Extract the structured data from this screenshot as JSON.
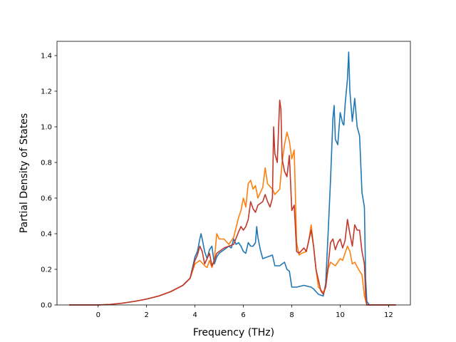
{
  "chart_data": {
    "type": "line",
    "title": "",
    "xlabel": "Frequency (THz)",
    "ylabel": "Partial Density of States",
    "xlim": [
      -1.7,
      12.9
    ],
    "ylim": [
      0.0,
      1.48
    ],
    "xticks": [
      0,
      2,
      4,
      6,
      8,
      10,
      12
    ],
    "xtick_labels": [
      "0",
      "2",
      "4",
      "6",
      "8",
      "10",
      "12"
    ],
    "yticks": [
      0.0,
      0.2,
      0.4,
      0.6,
      0.8,
      1.0,
      1.2,
      1.4
    ],
    "ytick_labels": [
      "0.0",
      "0.2",
      "0.4",
      "0.6",
      "0.8",
      "1.0",
      "1.2",
      "1.4"
    ],
    "grid": false,
    "legend": "none",
    "series": [
      {
        "color": "#1f77b4",
        "points": [
          [
            -1.2,
            0.0
          ],
          [
            0,
            0.0
          ],
          [
            0.5,
            0.003
          ],
          [
            1,
            0.01
          ],
          [
            1.5,
            0.02
          ],
          [
            2,
            0.033
          ],
          [
            2.5,
            0.05
          ],
          [
            3,
            0.075
          ],
          [
            3.5,
            0.11
          ],
          [
            3.8,
            0.15
          ],
          [
            4.0,
            0.27
          ],
          [
            4.1,
            0.3
          ],
          [
            4.2,
            0.37
          ],
          [
            4.25,
            0.4
          ],
          [
            4.3,
            0.37
          ],
          [
            4.4,
            0.3
          ],
          [
            4.5,
            0.26
          ],
          [
            4.6,
            0.31
          ],
          [
            4.7,
            0.33
          ],
          [
            4.8,
            0.23
          ],
          [
            4.9,
            0.27
          ],
          [
            5.0,
            0.29
          ],
          [
            5.2,
            0.31
          ],
          [
            5.4,
            0.33
          ],
          [
            5.5,
            0.32
          ],
          [
            5.6,
            0.37
          ],
          [
            5.7,
            0.34
          ],
          [
            5.8,
            0.35
          ],
          [
            5.9,
            0.33
          ],
          [
            6.0,
            0.3
          ],
          [
            6.1,
            0.29
          ],
          [
            6.2,
            0.35
          ],
          [
            6.3,
            0.33
          ],
          [
            6.4,
            0.33
          ],
          [
            6.5,
            0.35
          ],
          [
            6.55,
            0.44
          ],
          [
            6.6,
            0.38
          ],
          [
            6.7,
            0.31
          ],
          [
            6.8,
            0.26
          ],
          [
            7.0,
            0.27
          ],
          [
            7.2,
            0.28
          ],
          [
            7.3,
            0.22
          ],
          [
            7.5,
            0.22
          ],
          [
            7.7,
            0.24
          ],
          [
            7.8,
            0.2
          ],
          [
            7.9,
            0.19
          ],
          [
            8.0,
            0.1
          ],
          [
            8.2,
            0.1
          ],
          [
            8.5,
            0.11
          ],
          [
            8.8,
            0.1
          ],
          [
            8.9,
            0.09
          ],
          [
            9.1,
            0.06
          ],
          [
            9.3,
            0.05
          ],
          [
            9.4,
            0.12
          ],
          [
            9.5,
            0.4
          ],
          [
            9.6,
            0.7
          ],
          [
            9.7,
            1.05
          ],
          [
            9.75,
            1.12
          ],
          [
            9.8,
            0.93
          ],
          [
            9.9,
            0.9
          ],
          [
            10.0,
            1.08
          ],
          [
            10.1,
            1.02
          ],
          [
            10.15,
            1.01
          ],
          [
            10.2,
            1.12
          ],
          [
            10.3,
            1.27
          ],
          [
            10.35,
            1.42
          ],
          [
            10.4,
            1.2
          ],
          [
            10.5,
            1.03
          ],
          [
            10.6,
            1.16
          ],
          [
            10.7,
            1.0
          ],
          [
            10.8,
            0.95
          ],
          [
            10.9,
            0.63
          ],
          [
            11.0,
            0.55
          ],
          [
            11.05,
            0.15
          ],
          [
            11.1,
            0.02
          ],
          [
            11.2,
            0.0
          ],
          [
            12.3,
            0.0
          ]
        ]
      },
      {
        "color": "#ff7f0e",
        "points": [
          [
            -1.2,
            0.0
          ],
          [
            0,
            0.0
          ],
          [
            0.5,
            0.003
          ],
          [
            1,
            0.01
          ],
          [
            1.5,
            0.02
          ],
          [
            2,
            0.033
          ],
          [
            2.5,
            0.05
          ],
          [
            3,
            0.075
          ],
          [
            3.5,
            0.11
          ],
          [
            3.8,
            0.15
          ],
          [
            4.0,
            0.23
          ],
          [
            4.2,
            0.25
          ],
          [
            4.4,
            0.22
          ],
          [
            4.5,
            0.21
          ],
          [
            4.6,
            0.25
          ],
          [
            4.7,
            0.21
          ],
          [
            4.8,
            0.25
          ],
          [
            4.9,
            0.4
          ],
          [
            5.0,
            0.37
          ],
          [
            5.2,
            0.37
          ],
          [
            5.4,
            0.34
          ],
          [
            5.6,
            0.38
          ],
          [
            5.8,
            0.49
          ],
          [
            5.9,
            0.53
          ],
          [
            6.0,
            0.6
          ],
          [
            6.1,
            0.55
          ],
          [
            6.2,
            0.68
          ],
          [
            6.3,
            0.7
          ],
          [
            6.4,
            0.65
          ],
          [
            6.5,
            0.67
          ],
          [
            6.6,
            0.6
          ],
          [
            6.8,
            0.66
          ],
          [
            6.9,
            0.77
          ],
          [
            7.0,
            0.68
          ],
          [
            7.2,
            0.65
          ],
          [
            7.3,
            0.62
          ],
          [
            7.5,
            0.65
          ],
          [
            7.6,
            0.8
          ],
          [
            7.7,
            0.9
          ],
          [
            7.8,
            0.97
          ],
          [
            7.9,
            0.92
          ],
          [
            8.0,
            0.82
          ],
          [
            8.1,
            0.87
          ],
          [
            8.2,
            0.35
          ],
          [
            8.3,
            0.28
          ],
          [
            8.4,
            0.29
          ],
          [
            8.6,
            0.3
          ],
          [
            8.7,
            0.36
          ],
          [
            8.8,
            0.45
          ],
          [
            8.9,
            0.33
          ],
          [
            9.0,
            0.2
          ],
          [
            9.1,
            0.1
          ],
          [
            9.3,
            0.07
          ],
          [
            9.4,
            0.1
          ],
          [
            9.5,
            0.2
          ],
          [
            9.6,
            0.24
          ],
          [
            9.8,
            0.22
          ],
          [
            10.0,
            0.26
          ],
          [
            10.1,
            0.25
          ],
          [
            10.3,
            0.33
          ],
          [
            10.4,
            0.3
          ],
          [
            10.5,
            0.23
          ],
          [
            10.6,
            0.24
          ],
          [
            10.8,
            0.19
          ],
          [
            10.9,
            0.17
          ],
          [
            11.0,
            0.05
          ],
          [
            11.1,
            0.0
          ],
          [
            12.3,
            0.0
          ]
        ]
      },
      {
        "color": "#c0392b",
        "points": [
          [
            -1.2,
            0.0
          ],
          [
            0,
            0.0
          ],
          [
            0.5,
            0.003
          ],
          [
            1,
            0.01
          ],
          [
            1.5,
            0.02
          ],
          [
            2,
            0.033
          ],
          [
            2.5,
            0.05
          ],
          [
            3,
            0.075
          ],
          [
            3.5,
            0.11
          ],
          [
            3.8,
            0.15
          ],
          [
            4.0,
            0.25
          ],
          [
            4.1,
            0.28
          ],
          [
            4.2,
            0.33
          ],
          [
            4.3,
            0.3
          ],
          [
            4.4,
            0.23
          ],
          [
            4.5,
            0.26
          ],
          [
            4.6,
            0.29
          ],
          [
            4.7,
            0.22
          ],
          [
            4.8,
            0.25
          ],
          [
            4.9,
            0.29
          ],
          [
            5.0,
            0.3
          ],
          [
            5.2,
            0.32
          ],
          [
            5.4,
            0.33
          ],
          [
            5.6,
            0.34
          ],
          [
            5.8,
            0.41
          ],
          [
            5.9,
            0.44
          ],
          [
            6.0,
            0.42
          ],
          [
            6.1,
            0.44
          ],
          [
            6.2,
            0.48
          ],
          [
            6.3,
            0.58
          ],
          [
            6.4,
            0.54
          ],
          [
            6.5,
            0.52
          ],
          [
            6.6,
            0.56
          ],
          [
            6.8,
            0.58
          ],
          [
            6.9,
            0.62
          ],
          [
            7.0,
            0.58
          ],
          [
            7.1,
            0.55
          ],
          [
            7.2,
            0.6
          ],
          [
            7.25,
            1.0
          ],
          [
            7.3,
            0.85
          ],
          [
            7.4,
            0.8
          ],
          [
            7.5,
            1.15
          ],
          [
            7.55,
            1.1
          ],
          [
            7.6,
            0.82
          ],
          [
            7.7,
            0.75
          ],
          [
            7.8,
            0.72
          ],
          [
            7.9,
            0.84
          ],
          [
            8.0,
            0.53
          ],
          [
            8.1,
            0.56
          ],
          [
            8.2,
            0.3
          ],
          [
            8.3,
            0.29
          ],
          [
            8.5,
            0.32
          ],
          [
            8.6,
            0.3
          ],
          [
            8.8,
            0.42
          ],
          [
            8.9,
            0.33
          ],
          [
            9.0,
            0.2
          ],
          [
            9.2,
            0.08
          ],
          [
            9.3,
            0.06
          ],
          [
            9.4,
            0.1
          ],
          [
            9.5,
            0.22
          ],
          [
            9.6,
            0.35
          ],
          [
            9.7,
            0.37
          ],
          [
            9.8,
            0.31
          ],
          [
            9.9,
            0.35
          ],
          [
            10.0,
            0.37
          ],
          [
            10.1,
            0.32
          ],
          [
            10.2,
            0.36
          ],
          [
            10.3,
            0.48
          ],
          [
            10.4,
            0.4
          ],
          [
            10.5,
            0.33
          ],
          [
            10.6,
            0.45
          ],
          [
            10.7,
            0.42
          ],
          [
            10.8,
            0.42
          ],
          [
            10.9,
            0.3
          ],
          [
            11.0,
            0.23
          ],
          [
            11.05,
            0.05
          ],
          [
            11.1,
            0.0
          ],
          [
            12.3,
            0.0
          ]
        ]
      }
    ]
  }
}
